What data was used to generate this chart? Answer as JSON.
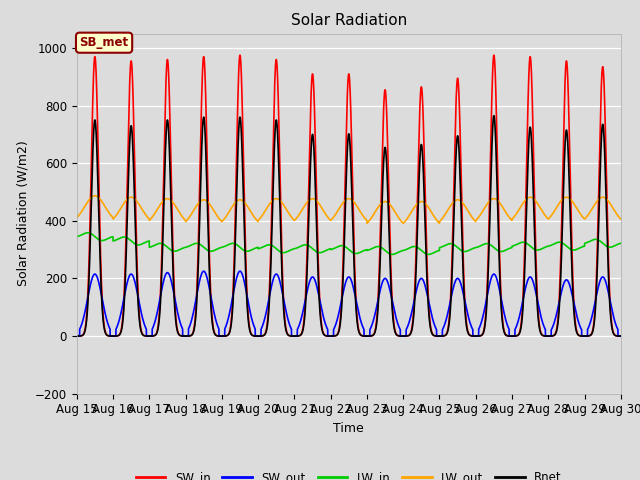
{
  "title": "Solar Radiation",
  "xlabel": "Time",
  "ylabel": "Solar Radiation (W/m2)",
  "ylim": [
    -200,
    1050
  ],
  "xlim": [
    0,
    15
  ],
  "bg_color": "#dcdcdc",
  "fig_color": "#dcdcdc",
  "annotation_text": "SB_met",
  "annotation_bg": "#ffffcc",
  "annotation_border": "#8B0000",
  "series": {
    "SW_in": {
      "color": "#ff0000",
      "lw": 1.2
    },
    "SW_out": {
      "color": "#0000ff",
      "lw": 1.2
    },
    "LW_in": {
      "color": "#00cc00",
      "lw": 1.2
    },
    "LW_out": {
      "color": "#ffa500",
      "lw": 1.2
    },
    "Rnet": {
      "color": "#000000",
      "lw": 1.2
    }
  },
  "x_ticks_labels": [
    "Aug 15",
    "Aug 16",
    "Aug 17",
    "Aug 18",
    "Aug 19",
    "Aug 20",
    "Aug 21",
    "Aug 22",
    "Aug 23",
    "Aug 24",
    "Aug 25",
    "Aug 26",
    "Aug 27",
    "Aug 28",
    "Aug 29",
    "Aug 30"
  ],
  "days": 15,
  "pts_per_day": 288
}
